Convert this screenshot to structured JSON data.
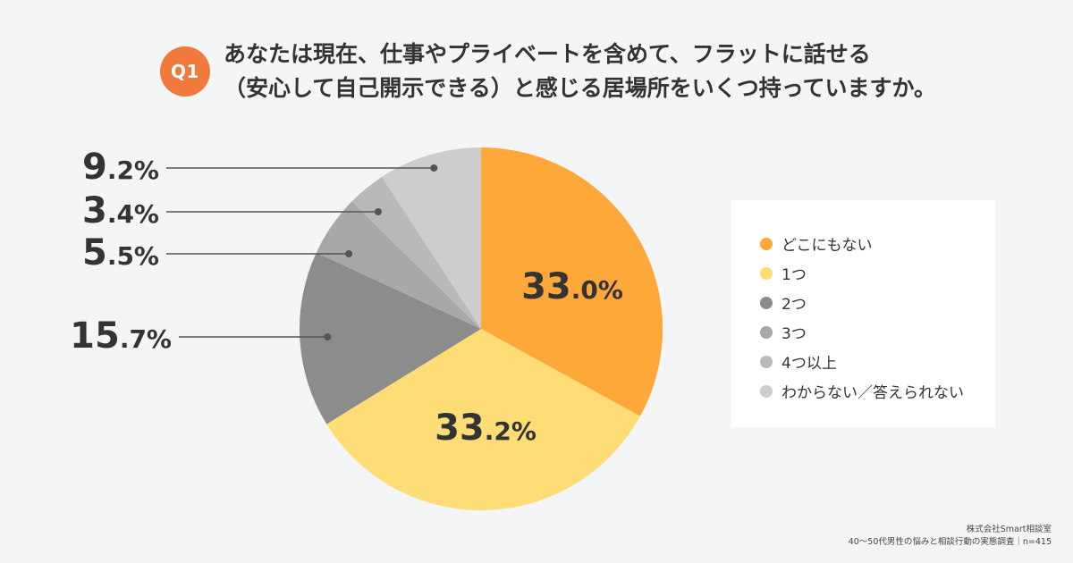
{
  "question": {
    "badge": "Q1",
    "title_line1": "あなたは現在、仕事やプライベートを含めて、フラットに話せる",
    "title_line2": "（安心して自己開示できる）と感じる居場所をいくつ持っていますか。"
  },
  "chart_data": {
    "type": "pie",
    "title": "あなたは現在、仕事やプライベートを含めて、フラットに話せる（安心して自己開示できる）と感じる居場所をいくつ持っていますか。",
    "unit": "%",
    "start": "12 o'clock",
    "direction": "clockwise",
    "legend_position": "right",
    "slices": [
      {
        "label": "どこにもない",
        "value": 33.0,
        "color": "#ffa83a",
        "label_int": "33",
        "label_dec": ".0%",
        "label_position": "inside"
      },
      {
        "label": "1つ",
        "value": 33.2,
        "color": "#fedd77",
        "label_int": "33",
        "label_dec": ".2%",
        "label_position": "inside"
      },
      {
        "label": "2つ",
        "value": 15.7,
        "color": "#8c8c8c",
        "label_int": "15",
        "label_dec": ".7%",
        "label_position": "left-leader"
      },
      {
        "label": "3つ",
        "value": 5.5,
        "color": "#a8a8a8",
        "label_int": "5",
        "label_dec": ".5%",
        "label_position": "left-leader"
      },
      {
        "label": "4つ以上",
        "value": 3.4,
        "color": "#b9b9b9",
        "label_int": "3",
        "label_dec": ".4%",
        "label_position": "left-leader"
      },
      {
        "label": "わからない／答えられない",
        "value": 9.2,
        "color": "#cdcdcd",
        "label_int": "9",
        "label_dec": ".2%",
        "label_position": "left-leader"
      }
    ]
  },
  "footer": {
    "line1": "株式会社Smart相談室",
    "line2": "40〜50代男性の悩みと相談行動の実態調査｜n=415"
  }
}
